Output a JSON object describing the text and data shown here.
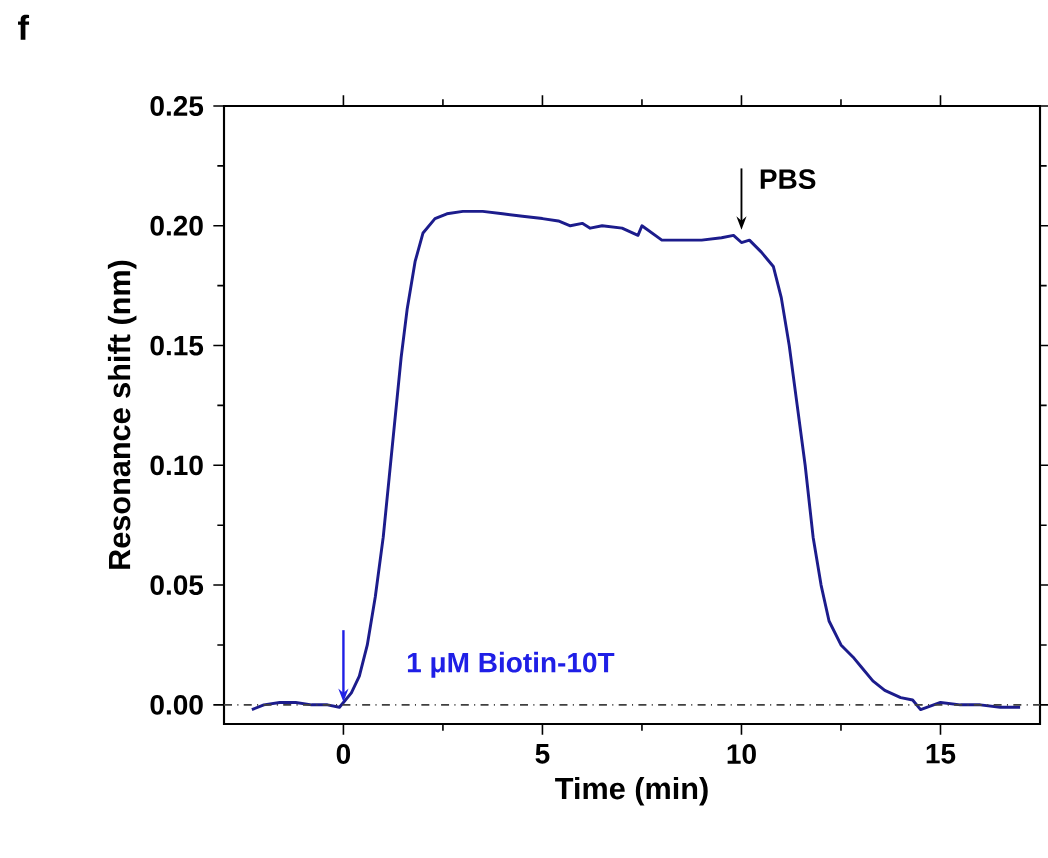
{
  "chart_data": {
    "type": "line",
    "title": "f",
    "xlabel": "Time (min)",
    "ylabel": "Resonance shift (nm)",
    "xlim": [
      -3,
      17.5
    ],
    "ylim": [
      -0.008,
      0.25
    ],
    "xticks": [
      0,
      5,
      10,
      15
    ],
    "yticks": [
      {
        "value": 0,
        "label": "0.00"
      },
      {
        "value": 0.05,
        "label": "0.05"
      },
      {
        "value": 0.1,
        "label": "0.10"
      },
      {
        "value": 0.15,
        "label": "0.15"
      },
      {
        "value": 0.2,
        "label": "0.20"
      },
      {
        "value": 0.25,
        "label": "0.25"
      }
    ],
    "grid": false,
    "marker": "none",
    "line_style": "solid",
    "series": [
      {
        "color": "#1c1c8c",
        "x": [
          -2.3,
          -2.0,
          -1.6,
          -1.2,
          -0.8,
          -0.4,
          -0.1,
          0.0,
          0.2,
          0.4,
          0.6,
          0.8,
          1.0,
          1.15,
          1.3,
          1.45,
          1.6,
          1.8,
          2.0,
          2.3,
          2.6,
          3.0,
          3.5,
          4.0,
          4.5,
          5.0,
          5.4,
          5.7,
          6.0,
          6.2,
          6.5,
          7.0,
          7.4,
          7.5,
          8.0,
          8.5,
          9.0,
          9.5,
          9.8,
          10.0,
          10.2,
          10.5,
          10.8,
          11.0,
          11.2,
          11.4,
          11.6,
          11.8,
          12.0,
          12.2,
          12.5,
          12.8,
          13.0,
          13.3,
          13.6,
          14.0,
          14.3,
          14.5,
          15.0,
          15.5,
          16.0,
          16.5,
          17.0
        ],
        "values": [
          -0.002,
          0.0,
          0.001,
          0.001,
          0.0,
          0.0,
          -0.001,
          0.001,
          0.005,
          0.012,
          0.025,
          0.045,
          0.07,
          0.095,
          0.12,
          0.145,
          0.165,
          0.185,
          0.197,
          0.203,
          0.205,
          0.206,
          0.206,
          0.205,
          0.204,
          0.203,
          0.202,
          0.2,
          0.201,
          0.199,
          0.2,
          0.199,
          0.196,
          0.2,
          0.194,
          0.194,
          0.194,
          0.195,
          0.196,
          0.193,
          0.194,
          0.189,
          0.183,
          0.17,
          0.15,
          0.125,
          0.1,
          0.07,
          0.05,
          0.035,
          0.025,
          0.02,
          0.016,
          0.01,
          0.006,
          0.003,
          0.002,
          -0.002,
          0.001,
          0.0,
          0.0,
          -0.001,
          -0.001
        ]
      }
    ],
    "ref_lines": [
      {
        "axis": "y",
        "value": 0,
        "line_style": "dashdot",
        "color": "#404040"
      }
    ],
    "annotations": [
      {
        "text": "PBS",
        "x": 10,
        "y": 0.195
      },
      {
        "text": "1 μM Biotin-10T",
        "x": 0,
        "y": 0.0
      }
    ]
  }
}
